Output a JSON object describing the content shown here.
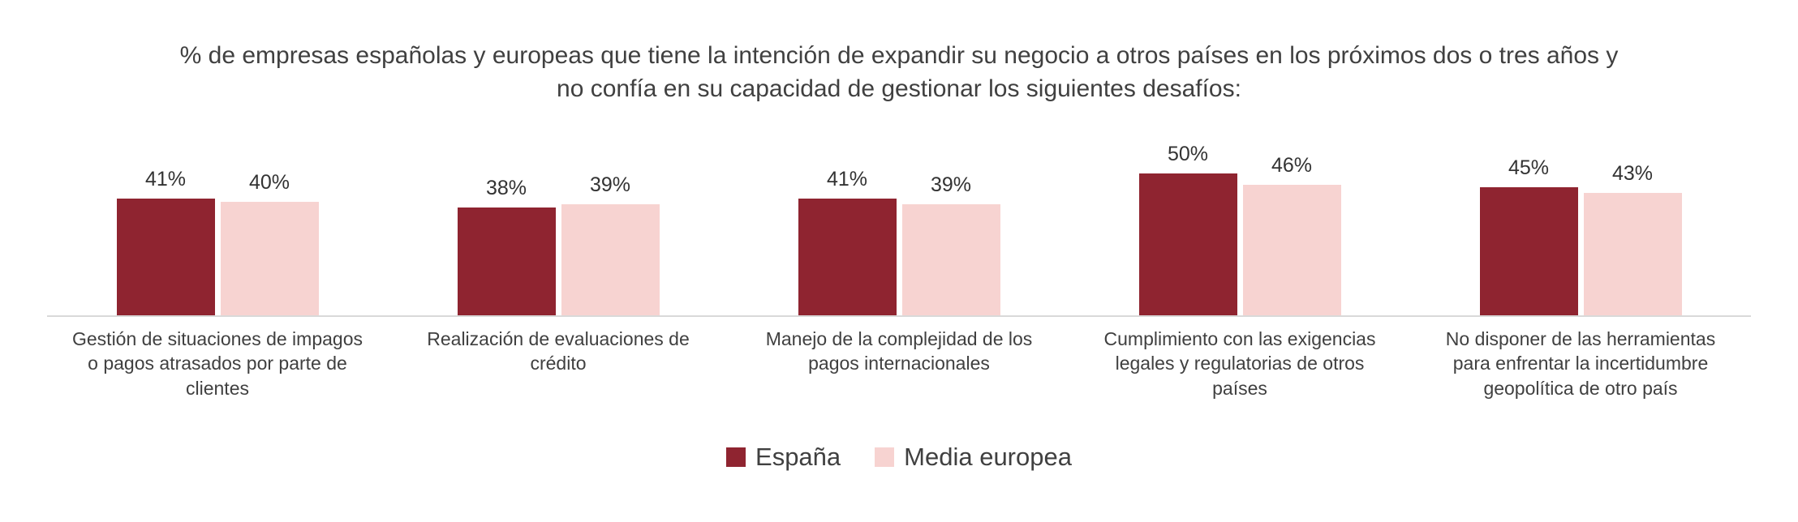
{
  "title": "% de empresas españolas y europeas que tiene la intención de expandir su negocio a otros países en los próximos dos o tres años y no confía en su capacidad de gestionar los siguientes desafíos:",
  "colors": {
    "espana": "#8f2430",
    "media_europea": "#f7d3d1",
    "axis_line": "#d9d9d9",
    "text": "#404040"
  },
  "chart_data": {
    "type": "bar",
    "title": "% de empresas españolas y europeas que tiene la intención de expandir su negocio a otros países en los próximos dos o tres años y no confía en su capacidad de gestionar los siguientes desafíos:",
    "categories": [
      "Gestión de situaciones de impagos o pagos atrasados por parte de clientes",
      "Realización de evaluaciones de crédito",
      "Manejo de la complejidad de los pagos internacionales",
      "Cumplimiento con las exigencias legales y regulatorias de otros países",
      "No disponer de las herramientas para enfrentar la incertidumbre geopolítica de otro país"
    ],
    "series": [
      {
        "name": "España",
        "color": "#8f2430",
        "values": [
          41,
          38,
          41,
          50,
          45
        ]
      },
      {
        "name": "Media europea",
        "color": "#f7d3d1",
        "values": [
          40,
          39,
          39,
          46,
          43
        ]
      }
    ],
    "value_suffix": "%",
    "ylim": [
      0,
      50
    ],
    "grid": false,
    "legend_position": "bottom"
  }
}
